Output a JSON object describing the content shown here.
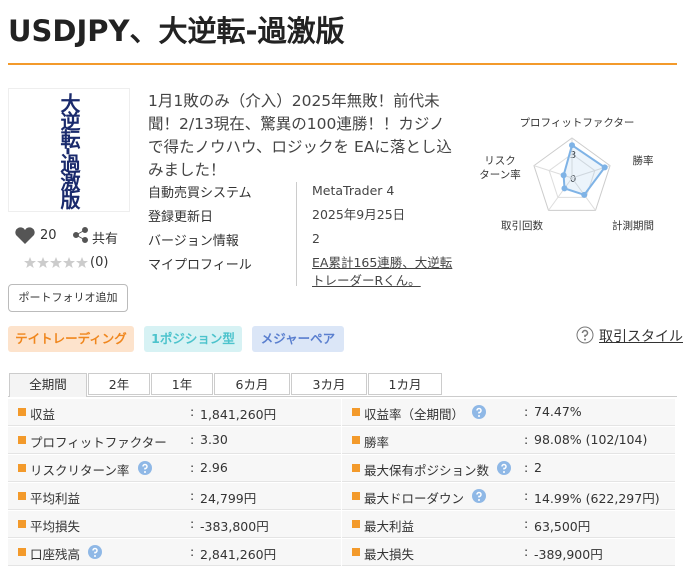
{
  "header": {
    "title": "USDJPY、大逆転-過激版"
  },
  "product": {
    "thumbnail_text": "大逆転-過激版",
    "likes": "20",
    "share": "共有",
    "rating": "(0)",
    "portfolio_button": "ポートフォリオ追加",
    "description": "1月1敗のみ（介入）2025年無敗！前代未聞！2/13現在、驚異の100連勝！！カジノで得たノウハウ、ロジックを EAに落とし込みました！",
    "info": [
      [
        "自動売買システム",
        "MetaTrader 4"
      ],
      [
        "登録更新日",
        "2025年9月25日"
      ],
      [
        "バージョン情報",
        "2"
      ],
      [
        "マイプロフィール",
        "EA累計165連勝、大逆転トレーダーRくん。"
      ]
    ]
  },
  "radar": {
    "axes": [
      "プロフィットファクター",
      "勝率",
      "計測期間",
      "取引回数",
      "リスク\nターン率"
    ],
    "rlim": [
      0,
      5
    ],
    "ticks": [
      0,
      3
    ],
    "values": [
      4.1,
      4.3,
      2.6,
      1.6,
      1.1
    ],
    "color": "#7fb3e6"
  },
  "tags": [
    {
      "label": "テイトレーディング",
      "bg": "#fde3cc",
      "color": "#f0871e"
    },
    {
      "label": "1ポジション型",
      "bg": "#d7f2f4",
      "color": "#4cc3cc"
    },
    {
      "label": "メジャーペア",
      "bg": "#dbe6f7",
      "color": "#5a7fcf"
    }
  ],
  "style_link": "取引スタイル",
  "tabs": [
    "全期間",
    "2年",
    "1年",
    "6カ月",
    "3カ月",
    "1カ月"
  ],
  "stats": {
    "separator": ":",
    "rows": [
      [
        {
          "label": "収益",
          "value": "1,841,260円",
          "help": false
        },
        {
          "label": "収益率（全期間）",
          "value": "74.47%",
          "help": true
        }
      ],
      [
        {
          "label": "プロフィットファクター",
          "value": "3.30",
          "help": false
        },
        {
          "label": "勝率",
          "value": "98.08% (102/104)",
          "help": false
        }
      ],
      [
        {
          "label": "リスクリターン率",
          "value": "2.96",
          "help": true
        },
        {
          "label": "最大保有ポジション数",
          "value": "2",
          "help": true
        }
      ],
      [
        {
          "label": "平均利益",
          "value": "24,799円",
          "help": false
        },
        {
          "label": "最大ドローダウン",
          "value": "14.99% (622,297円)",
          "help": true
        }
      ],
      [
        {
          "label": "平均損失",
          "value": "-383,800円",
          "help": false
        },
        {
          "label": "最大利益",
          "value": "63,500円",
          "help": false
        }
      ],
      [
        {
          "label": "口座残高",
          "value": "2,841,260円",
          "help": true
        },
        {
          "label": "最大損失",
          "value": "-389,900円",
          "help": false
        }
      ]
    ]
  }
}
